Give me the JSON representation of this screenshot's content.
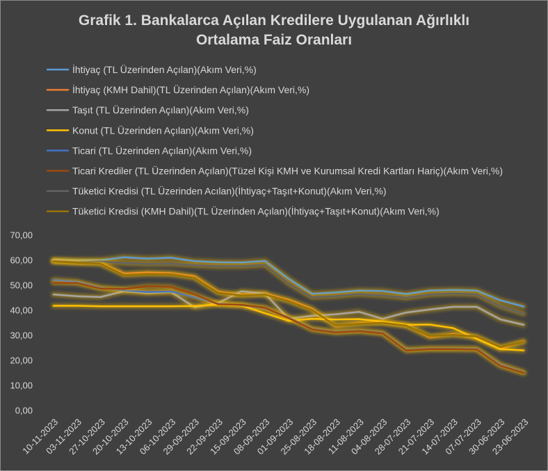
{
  "chart_data": {
    "type": "line",
    "title": "Grafik 1. Bankalarca Açılan Kredilere Uygulanan Ağırlıklı Ortalama Faiz Oranları",
    "xlabel": "",
    "ylabel": "",
    "categories": [
      "10-11-2023",
      "03-11-2023",
      "27-10-2023",
      "20-10-2023",
      "13-10-2023",
      "06-10-2023",
      "29-09-2023",
      "22-09-2023",
      "15-09-2023",
      "08-09-2023",
      "01-09-2023",
      "25-08-2023",
      "18-08-2023",
      "11-08-2023",
      "04-08-2023",
      "28-07-2023",
      "21-07-2023",
      "14-07-2023",
      "07-07-2023",
      "30-06-2023",
      "23-06-2023"
    ],
    "ylim": [
      0,
      70
    ],
    "y_ticks": [
      0,
      10,
      20,
      30,
      40,
      50,
      60,
      70
    ],
    "y_tick_labels": [
      "0,00",
      "10,00",
      "20,00",
      "30,00",
      "40,00",
      "50,00",
      "60,00",
      "70,00"
    ],
    "grid": false,
    "legend_position": "top-left",
    "background": "#404040",
    "text_color": "#D9D9D9",
    "glow_color": "#FFC000",
    "series": [
      {
        "name": "İhtiyaç (TL Üzerinden Açılan)(Akım Veri,%)",
        "color": "#5B9BD5",
        "values": [
          60.2,
          60.0,
          60.0,
          61.2,
          60.6,
          61.0,
          59.6,
          59.2,
          59.1,
          59.7,
          52.6,
          46.6,
          47.1,
          47.9,
          47.7,
          46.5,
          47.9,
          48.1,
          47.9,
          44.0,
          41.5
        ]
      },
      {
        "name": "İhtiyaç (KMH Dahil)(TL Üzerinden Açılan)(Akım Veri,%)",
        "color": "#ED7D31",
        "values": [
          59.8,
          59.3,
          58.9,
          54.6,
          55.1,
          54.8,
          53.5,
          47.4,
          46.2,
          46.6,
          44.2,
          40.6,
          33.6,
          34.9,
          35.2,
          34.1,
          29.3,
          30.5,
          29.1,
          24.8,
          27.6
        ]
      },
      {
        "name": "Taşıt (TL Üzerinden Açılan)(Akım Veri,%)",
        "color": "#A5A5A5",
        "values": [
          46.3,
          45.6,
          45.3,
          47.6,
          46.9,
          47.3,
          41.2,
          42.9,
          47.6,
          46.6,
          36.6,
          37.8,
          38.4,
          39.4,
          36.6,
          39.1,
          40.3,
          41.4,
          41.4,
          36.4,
          34.2
        ]
      },
      {
        "name": "Konut (TL Üzerinden Açılan)(Akım Veri,%)",
        "color": "#FFC000",
        "values": [
          41.8,
          41.8,
          41.6,
          41.6,
          41.6,
          41.6,
          41.7,
          42.3,
          41.9,
          38.8,
          35.8,
          36.6,
          36.3,
          36.5,
          35.5,
          34.2,
          34.3,
          32.9,
          28.6,
          24.5,
          24.0
        ]
      },
      {
        "name": "Ticari (TL Üzerinden Açılan)(Akım Veri,%)",
        "color": "#4472C4",
        "values": [
          52.1,
          51.4,
          49.0,
          47.9,
          47.3,
          47.5,
          45.2,
          42.7,
          42.0,
          40.8,
          37.2,
          32.6,
          31.4,
          31.9,
          31.0,
          24.3,
          24.7,
          24.7,
          24.6,
          18.3,
          15.2
        ]
      },
      {
        "name": "Ticari Krediler (TL Üzerinden Açılan)(Tüzel Kişi KMH ve Kurumsal Kredi Kartları Hariç)(Akım Veri,%)",
        "color": "#9E480E",
        "values": [
          51.0,
          50.9,
          48.7,
          48.5,
          49.6,
          49.4,
          46.4,
          42.4,
          42.2,
          41.0,
          36.9,
          32.4,
          31.2,
          31.7,
          30.8,
          24.0,
          24.5,
          24.5,
          24.4,
          17.9,
          15.0
        ]
      },
      {
        "name": "Tüketici Kredisi (TL Üzerinden Acılan)(İhtiyaç+Taşıt+Konut)(Akım Veri,%)",
        "color": "#636363",
        "values": [
          59.6,
          59.2,
          59.5,
          58.9,
          58.5,
          58.6,
          58.0,
          57.6,
          57.6,
          58.1,
          50.8,
          45.2,
          45.6,
          46.5,
          45.9,
          45.0,
          46.3,
          46.7,
          46.4,
          41.6,
          38.6
        ]
      },
      {
        "name": "Tüketici Kredisi (KMH Dahil)(TL Üzerinden Açılan)(İhtiyaç+Taşıt+Konut)(Akım Veri,%)",
        "color": "#997300",
        "values": [
          59.5,
          59.0,
          58.6,
          54.1,
          54.5,
          54.4,
          53.0,
          47.0,
          45.9,
          46.3,
          43.7,
          40.1,
          33.9,
          34.6,
          35.0,
          33.9,
          29.7,
          30.2,
          29.5,
          25.3,
          27.4
        ]
      }
    ]
  }
}
